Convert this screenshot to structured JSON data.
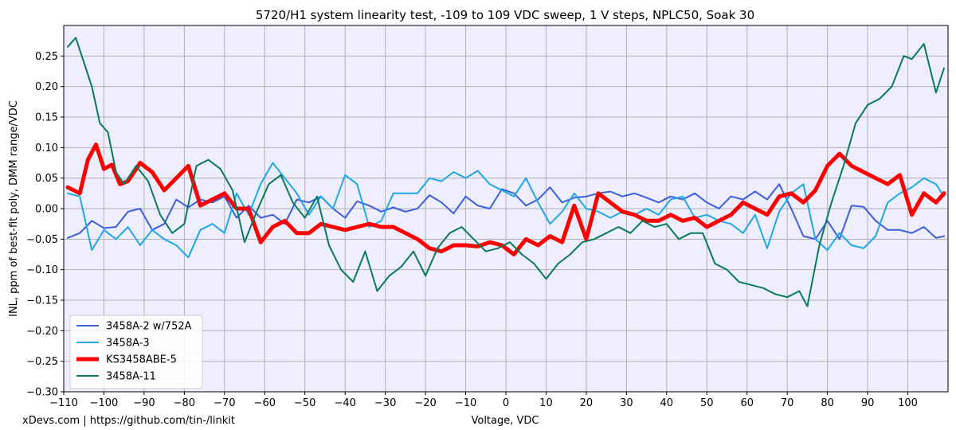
{
  "footer": "xDevs.com | https://github.com/tin-/linkit",
  "chart_data": {
    "type": "line",
    "title": "5720/H1 system linearity test, -109 to 109 VDC sweep, 1 V steps, NPLC50, Soak 30",
    "xlabel": "Voltage, VDC",
    "ylabel": "INL, ppm of best-fit poly, DMM range/VDC",
    "xlim": [
      -110,
      110
    ],
    "ylim": [
      -0.3,
      0.3
    ],
    "xticks": [
      -110,
      -100,
      -90,
      -80,
      -70,
      -60,
      -50,
      -40,
      -30,
      -20,
      -10,
      0,
      10,
      20,
      30,
      40,
      50,
      60,
      70,
      80,
      90,
      100
    ],
    "xtick_labels": [
      "−110",
      "−100",
      "−90",
      "−80",
      "−70",
      "−60",
      "−50",
      "−40",
      "−30",
      "−20",
      "−10",
      "0",
      "10",
      "20",
      "30",
      "40",
      "50",
      "60",
      "70",
      "80",
      "90",
      "100"
    ],
    "yticks": [
      -0.3,
      -0.25,
      -0.2,
      -0.15,
      -0.1,
      -0.05,
      0.0,
      0.05,
      0.1,
      0.15,
      0.2,
      0.25
    ],
    "ytick_labels": [
      "−0.30",
      "−0.25",
      "−0.20",
      "−0.15",
      "−0.10",
      "−0.05",
      "0.00",
      "0.05",
      "0.10",
      "0.15",
      "0.20",
      "0.25"
    ],
    "grid": true,
    "legend_position": "lower-left",
    "background": "#eeeeff",
    "series": [
      {
        "name": "3458A-2 w/752A",
        "color": "#3d5fdb",
        "width": 2,
        "x": [
          -109,
          -106,
          -103,
          -100,
          -97,
          -94,
          -91,
          -88,
          -85,
          -82,
          -79,
          -76,
          -73,
          -70,
          -67,
          -64,
          -61,
          -58,
          -55,
          -52,
          -49,
          -46,
          -43,
          -40,
          -37,
          -34,
          -31,
          -28,
          -25,
          -22,
          -19,
          -16,
          -13,
          -10,
          -7,
          -4,
          -1,
          2,
          5,
          8,
          11,
          14,
          17,
          20,
          23,
          26,
          29,
          32,
          35,
          38,
          41,
          44,
          47,
          50,
          53,
          56,
          59,
          62,
          65,
          68,
          71,
          74,
          77,
          80,
          83,
          86,
          89,
          92,
          95,
          98,
          101,
          104,
          107,
          109
        ],
        "y": [
          -0.048,
          -0.04,
          -0.02,
          -0.032,
          -0.03,
          -0.005,
          0.0,
          -0.035,
          -0.025,
          0.015,
          0.002,
          0.015,
          0.01,
          0.02,
          -0.015,
          0.005,
          -0.015,
          -0.01,
          -0.025,
          0.015,
          0.01,
          0.02,
          0.0,
          -0.015,
          0.012,
          0.005,
          -0.005,
          0.002,
          -0.005,
          0.0,
          0.022,
          0.01,
          -0.008,
          0.02,
          0.005,
          0.0,
          0.032,
          0.025,
          0.005,
          0.015,
          0.035,
          0.01,
          0.018,
          0.02,
          0.025,
          0.028,
          0.02,
          0.025,
          0.018,
          0.01,
          0.02,
          0.015,
          0.025,
          0.01,
          0.0,
          0.02,
          0.015,
          0.028,
          0.015,
          0.04,
          0.0,
          -0.045,
          -0.05,
          -0.02,
          -0.05,
          0.005,
          0.003,
          -0.02,
          -0.035,
          -0.035,
          -0.04,
          -0.03,
          -0.048,
          -0.045
        ]
      },
      {
        "name": "3458A-3",
        "color": "#1fa8e6",
        "width": 2,
        "x": [
          -109,
          -106,
          -103,
          -100,
          -97,
          -94,
          -91,
          -88,
          -85,
          -82,
          -79,
          -76,
          -73,
          -70,
          -67,
          -64,
          -61,
          -58,
          -55,
          -52,
          -49,
          -46,
          -43,
          -40,
          -37,
          -34,
          -31,
          -28,
          -25,
          -22,
          -19,
          -16,
          -13,
          -10,
          -7,
          -4,
          -1,
          2,
          5,
          8,
          11,
          14,
          17,
          20,
          23,
          26,
          29,
          32,
          35,
          38,
          41,
          44,
          47,
          50,
          53,
          56,
          59,
          62,
          65,
          68,
          71,
          74,
          77,
          80,
          83,
          86,
          89,
          92,
          95,
          98,
          101,
          104,
          107,
          109
        ],
        "y": [
          0.025,
          0.02,
          -0.068,
          -0.035,
          -0.05,
          -0.03,
          -0.06,
          -0.035,
          -0.05,
          -0.06,
          -0.08,
          -0.035,
          -0.025,
          -0.04,
          0.025,
          -0.01,
          0.04,
          0.075,
          0.05,
          0.025,
          -0.01,
          0.02,
          0.0,
          0.055,
          0.04,
          -0.03,
          -0.02,
          0.025,
          0.025,
          0.025,
          0.05,
          0.045,
          0.06,
          0.05,
          0.062,
          0.04,
          0.03,
          0.02,
          0.05,
          0.01,
          -0.025,
          -0.005,
          0.025,
          0.0,
          -0.005,
          -0.015,
          -0.005,
          -0.01,
          0.0,
          -0.01,
          0.015,
          0.02,
          -0.015,
          -0.01,
          -0.02,
          -0.025,
          -0.04,
          -0.01,
          -0.065,
          -0.005,
          0.025,
          0.04,
          -0.05,
          -0.068,
          -0.04,
          -0.06,
          -0.065,
          -0.045,
          0.01,
          0.025,
          0.035,
          0.05,
          0.04,
          0.02
        ]
      },
      {
        "name": "KS3458ABE-5",
        "color": "#ff0000",
        "width": 5,
        "x": [
          -109,
          -106,
          -104,
          -102,
          -100,
          -98,
          -96,
          -94,
          -91,
          -88,
          -85,
          -82,
          -79,
          -76,
          -73,
          -70,
          -67,
          -64,
          -61,
          -58,
          -55,
          -52,
          -49,
          -46,
          -43,
          -40,
          -37,
          -34,
          -31,
          -28,
          -25,
          -22,
          -19,
          -16,
          -13,
          -10,
          -7,
          -4,
          -1,
          2,
          5,
          8,
          11,
          14,
          17,
          20,
          23,
          26,
          29,
          32,
          35,
          38,
          41,
          44,
          47,
          50,
          53,
          56,
          59,
          62,
          65,
          68,
          71,
          74,
          77,
          80,
          83,
          86,
          89,
          92,
          95,
          98,
          101,
          104,
          107,
          109
        ],
        "y": [
          0.035,
          0.025,
          0.08,
          0.105,
          0.065,
          0.072,
          0.04,
          0.045,
          0.075,
          0.06,
          0.03,
          0.05,
          0.07,
          0.005,
          0.015,
          0.025,
          0.0,
          0.0,
          -0.055,
          -0.03,
          -0.02,
          -0.04,
          -0.04,
          -0.025,
          -0.03,
          -0.035,
          -0.03,
          -0.025,
          -0.03,
          -0.03,
          -0.04,
          -0.05,
          -0.065,
          -0.07,
          -0.06,
          -0.06,
          -0.062,
          -0.055,
          -0.06,
          -0.075,
          -0.05,
          -0.06,
          -0.045,
          -0.055,
          0.005,
          -0.05,
          0.025,
          0.01,
          -0.005,
          -0.01,
          -0.02,
          -0.02,
          -0.01,
          -0.02,
          -0.015,
          -0.03,
          -0.02,
          -0.01,
          0.01,
          0.0,
          -0.01,
          0.02,
          0.025,
          0.01,
          0.03,
          0.07,
          0.09,
          0.07,
          0.06,
          0.05,
          0.04,
          0.055,
          -0.01,
          0.025,
          0.01,
          0.025
        ]
      },
      {
        "name": "3458A-11",
        "color": "#0a7a5a",
        "width": 2,
        "x": [
          -109,
          -107,
          -105,
          -103,
          -101,
          -99,
          -97,
          -95,
          -92,
          -89,
          -86,
          -83,
          -80,
          -77,
          -74,
          -71,
          -68,
          -65,
          -62,
          -59,
          -56,
          -53,
          -50,
          -47,
          -44,
          -41,
          -38,
          -35,
          -32,
          -29,
          -26,
          -23,
          -20,
          -17,
          -14,
          -11,
          -8,
          -5,
          -2,
          1,
          4,
          7,
          10,
          13,
          16,
          19,
          22,
          25,
          28,
          31,
          34,
          37,
          40,
          43,
          46,
          49,
          52,
          55,
          58,
          61,
          64,
          67,
          70,
          73,
          75,
          78,
          81,
          84,
          87,
          90,
          93,
          96,
          99,
          101,
          104,
          107,
          109
        ],
        "y": [
          0.265,
          0.28,
          0.24,
          0.2,
          0.14,
          0.125,
          0.06,
          0.04,
          0.07,
          0.045,
          -0.01,
          -0.04,
          -0.025,
          0.07,
          0.08,
          0.065,
          0.03,
          -0.055,
          -0.005,
          0.04,
          0.055,
          0.01,
          -0.015,
          0.02,
          -0.06,
          -0.1,
          -0.12,
          -0.07,
          -0.135,
          -0.11,
          -0.095,
          -0.07,
          -0.11,
          -0.065,
          -0.04,
          -0.03,
          -0.05,
          -0.07,
          -0.065,
          -0.055,
          -0.075,
          -0.09,
          -0.115,
          -0.09,
          -0.075,
          -0.055,
          -0.05,
          -0.04,
          -0.03,
          -0.04,
          -0.02,
          -0.03,
          -0.025,
          -0.05,
          -0.04,
          -0.04,
          -0.09,
          -0.1,
          -0.12,
          -0.125,
          -0.13,
          -0.14,
          -0.145,
          -0.135,
          -0.16,
          -0.06,
          0.01,
          0.07,
          0.14,
          0.17,
          0.18,
          0.2,
          0.25,
          0.245,
          0.27,
          0.19,
          0.23
        ]
      }
    ]
  }
}
